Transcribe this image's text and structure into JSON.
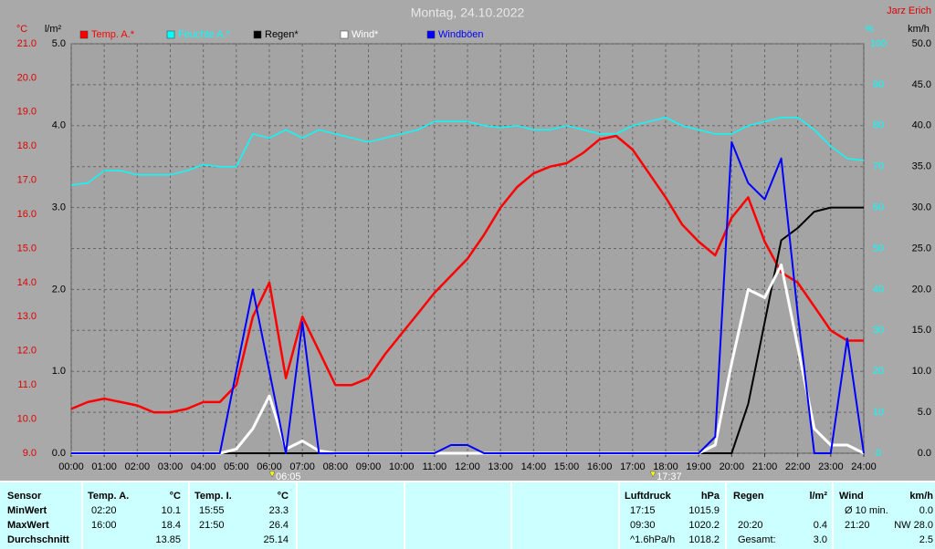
{
  "chart_data": {
    "type": "line",
    "title": "Montag, 24.10.2022",
    "author": "Jarz Erich",
    "grid": true,
    "x": [
      0,
      0.5,
      1,
      1.5,
      2,
      2.5,
      3,
      3.5,
      4,
      4.5,
      5,
      5.5,
      6,
      6.5,
      7,
      7.5,
      8,
      8.5,
      9,
      9.5,
      10,
      10.5,
      11,
      11.5,
      12,
      12.5,
      13,
      13.5,
      14,
      14.5,
      15,
      15.5,
      16,
      16.5,
      17,
      17.5,
      18,
      18.5,
      19,
      19.5,
      20,
      20.5,
      21,
      21.5,
      22,
      22.5,
      23,
      23.5,
      24
    ],
    "xlim": [
      0,
      24
    ],
    "xticks": [
      {
        "value": 0,
        "label": "00:00"
      },
      {
        "value": 1,
        "label": "01:00"
      },
      {
        "value": 2,
        "label": "02:00"
      },
      {
        "value": 3,
        "label": "03:00"
      },
      {
        "value": 4,
        "label": "04:00"
      },
      {
        "value": 5,
        "label": "05:00"
      },
      {
        "value": 6,
        "label": "06:00"
      },
      {
        "value": 7,
        "label": "07:00"
      },
      {
        "value": 8,
        "label": "08:00"
      },
      {
        "value": 9,
        "label": "09:00"
      },
      {
        "value": 10,
        "label": "10:00"
      },
      {
        "value": 11,
        "label": "11:00"
      },
      {
        "value": 12,
        "label": "12:00"
      },
      {
        "value": 13,
        "label": "13:00"
      },
      {
        "value": 14,
        "label": "14:00"
      },
      {
        "value": 15,
        "label": "15:00"
      },
      {
        "value": 16,
        "label": "16:00"
      },
      {
        "value": 17,
        "label": "17:00"
      },
      {
        "value": 18,
        "label": "18:00"
      },
      {
        "value": 19,
        "label": "19:00"
      },
      {
        "value": 20,
        "label": "20:00"
      },
      {
        "value": 21,
        "label": "21:00"
      },
      {
        "value": 22,
        "label": "22:00"
      },
      {
        "value": 23,
        "label": "23:00"
      },
      {
        "value": 24,
        "label": "24:00"
      }
    ],
    "y_label": "°C",
    "ylim": [
      9,
      21
    ],
    "yticks": [
      {
        "value": 9,
        "label": "9.0"
      },
      {
        "value": 10,
        "label": "10.0"
      },
      {
        "value": 11,
        "label": "11.0"
      },
      {
        "value": 12,
        "label": "12.0"
      },
      {
        "value": 13,
        "label": "13.0"
      },
      {
        "value": 14,
        "label": "14.0"
      },
      {
        "value": 15,
        "label": "15.0"
      },
      {
        "value": 16,
        "label": "16.0"
      },
      {
        "value": 17,
        "label": "17.0"
      },
      {
        "value": 18,
        "label": "18.0"
      },
      {
        "value": 19,
        "label": "19.0"
      },
      {
        "value": 20,
        "label": "20.0"
      },
      {
        "value": 21,
        "label": "21.0"
      }
    ],
    "y2_label": "l/m²",
    "y2lim": [
      0,
      5
    ],
    "y2ticks": [
      {
        "value": 0,
        "label": "0.0"
      },
      {
        "value": 1,
        "label": "1.0"
      },
      {
        "value": 2,
        "label": "2.0"
      },
      {
        "value": 3,
        "label": "3.0"
      },
      {
        "value": 4,
        "label": "4.0"
      },
      {
        "value": 5,
        "label": "5.0"
      }
    ],
    "y3_label": "%",
    "y3lim": [
      0,
      100
    ],
    "y3ticks": [
      0,
      10,
      20,
      30,
      40,
      50,
      60,
      70,
      80,
      90,
      100
    ],
    "y4_label": "km/h",
    "y4lim": [
      0,
      50
    ],
    "y4ticks": [
      {
        "value": 0,
        "label": "0.0"
      },
      {
        "value": 5,
        "label": "5.0"
      },
      {
        "value": 10,
        "label": "10.0"
      },
      {
        "value": 15,
        "label": "15.0"
      },
      {
        "value": 20,
        "label": "20.0"
      },
      {
        "value": 25,
        "label": "25.0"
      },
      {
        "value": 30,
        "label": "30.0"
      },
      {
        "value": 35,
        "label": "35.0"
      },
      {
        "value": 40,
        "label": "40.0"
      },
      {
        "value": 45,
        "label": "45.0"
      },
      {
        "value": 50,
        "label": "50.0"
      }
    ],
    "series": [
      {
        "name": "Feuchte A.*",
        "color": "#00ffff",
        "axis": "y3",
        "values": [
          65.5,
          66,
          69,
          69,
          68,
          68,
          68,
          69,
          70.5,
          70,
          70,
          78,
          77,
          79,
          77,
          79,
          78,
          77,
          76,
          77,
          78,
          79,
          81,
          81,
          81,
          80,
          79.5,
          80,
          79,
          79,
          80,
          79,
          78,
          78,
          80,
          81,
          82,
          80,
          79,
          78,
          78,
          80,
          81,
          82,
          82,
          79,
          75,
          72,
          71.5
        ]
      },
      {
        "name": "Temp. A.*",
        "color": "#ff0000",
        "axis": "y",
        "values": [
          10.3,
          10.5,
          10.6,
          10.5,
          10.4,
          10.2,
          10.2,
          10.3,
          10.5,
          10.5,
          11.0,
          13.0,
          14.0,
          11.2,
          13.0,
          12.0,
          11.0,
          11.0,
          11.2,
          11.9,
          12.5,
          13.1,
          13.7,
          14.2,
          14.7,
          15.4,
          16.2,
          16.8,
          17.2,
          17.4,
          17.5,
          17.8,
          18.2,
          18.3,
          17.9,
          17.2,
          16.5,
          15.7,
          15.2,
          14.8,
          15.9,
          16.5,
          15.2,
          14.3,
          14.0,
          13.3,
          12.6,
          12.3,
          12.3
        ]
      },
      {
        "name": "Regen*",
        "color": "#000000",
        "axis": "y2",
        "values": [
          0,
          0,
          0,
          0,
          0,
          0,
          0,
          0,
          0,
          0,
          0,
          0,
          0,
          0,
          0,
          0,
          0,
          0,
          0,
          0,
          0,
          0,
          0,
          0,
          0,
          0,
          0,
          0,
          0,
          0,
          0,
          0,
          0,
          0,
          0,
          0,
          0,
          0,
          0,
          0,
          0,
          0.6,
          1.6,
          2.6,
          2.75,
          2.95,
          3.0,
          3.0,
          3.0
        ]
      },
      {
        "name": "Wind*",
        "color": "#ffffff",
        "axis": "y4",
        "values": [
          0,
          0,
          0,
          0,
          0,
          0,
          0,
          0,
          0,
          0,
          0.5,
          3,
          7,
          0.5,
          1.5,
          0.3,
          0,
          0,
          0,
          0,
          0,
          0,
          0,
          0,
          0,
          0,
          0,
          0,
          0,
          0,
          0,
          0,
          0,
          0,
          0,
          0,
          0,
          0,
          0,
          1,
          11,
          20,
          19,
          23,
          13,
          3,
          1,
          1,
          0
        ]
      },
      {
        "name": "Windböen",
        "color": "#0000ff",
        "axis": "y4",
        "values": [
          0,
          0,
          0,
          0,
          0,
          0,
          0,
          0,
          0,
          0,
          10,
          20,
          10,
          0,
          16,
          0,
          0,
          0,
          0,
          0,
          0,
          0,
          0,
          1,
          1,
          0,
          0,
          0,
          0,
          0,
          0,
          0,
          0,
          0,
          0,
          0,
          0,
          0,
          0,
          2,
          38,
          33,
          31,
          36,
          17,
          0,
          0,
          14,
          0
        ]
      }
    ],
    "legend_order": [
      1,
      0,
      2,
      3,
      4
    ],
    "annotations": [
      {
        "x": 6.0833,
        "label": "06:05"
      },
      {
        "x": 17.6167,
        "label": "17:37"
      }
    ]
  },
  "table": {
    "sensor": {
      "header": "Sensor",
      "rows": [
        "MinWert",
        "MaxWert",
        "Durchschnitt"
      ]
    },
    "blocks": [
      {
        "header": "Temp. A.",
        "unit": "°C",
        "rows": [
          {
            "time": "02:20",
            "value": "10.1"
          },
          {
            "time": "16:00",
            "value": "18.4"
          },
          {
            "value": "13.85"
          }
        ]
      },
      {
        "header": "Temp. I.",
        "unit": "°C",
        "rows": [
          {
            "time": "15:55",
            "value": "23.3"
          },
          {
            "time": "21:50",
            "value": "26.4"
          },
          {
            "value": "25.14"
          }
        ]
      },
      {
        "header": "Luftdruck",
        "unit": "hPa",
        "rows": [
          {
            "time": "17:15",
            "value": "1015.9"
          },
          {
            "time": "09:30",
            "value": "1020.2"
          },
          {
            "time": "^1.6hPa/h",
            "value": "1018.2"
          }
        ]
      },
      {
        "header": "Regen",
        "unit": "l/m²",
        "rows": [
          null,
          {
            "time": "20:20",
            "value": "0.4"
          },
          {
            "time": "Gesamt:",
            "value": "3.0"
          }
        ]
      },
      {
        "header": "Wind",
        "unit": "km/h",
        "rows": [
          {
            "time": "Ø 10 min.",
            "value": "0.0"
          },
          {
            "time": "21:20",
            "value": "NW 28.0"
          },
          {
            "value": "2.5"
          }
        ]
      }
    ]
  }
}
